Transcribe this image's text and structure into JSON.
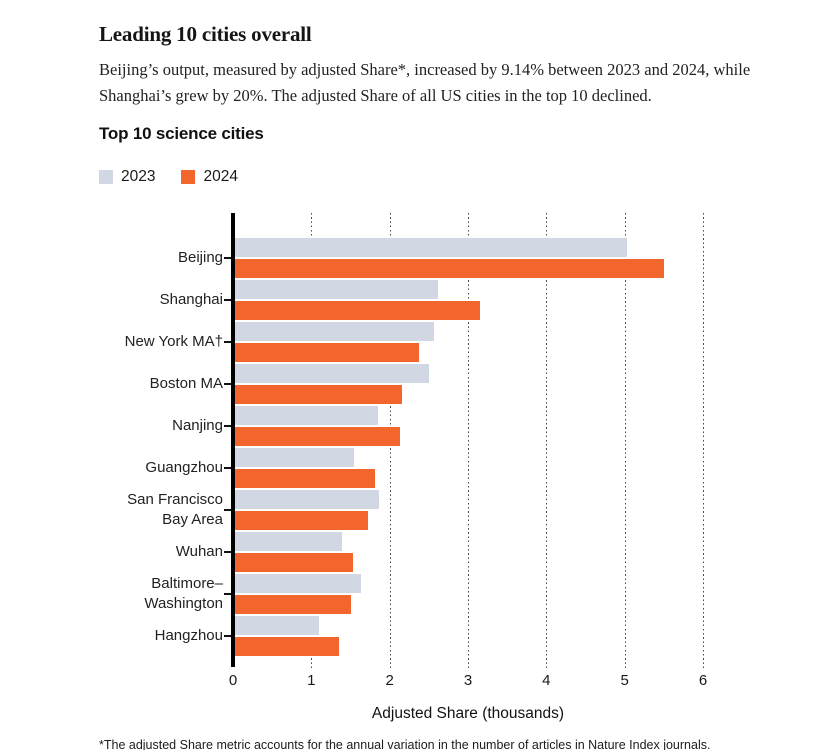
{
  "header": {
    "title": "Leading 10 cities overall",
    "subtitle": "Beijing’s output, measured by adjusted Share*, increased by 9.14% between 2023 and 2024, while Shanghai’s grew by 20%. The adjusted Share of all US cities in the top 10 declined.",
    "footnote": "*The adjusted Share metric accounts for the annual variation in the number of articles in Nature Index journals."
  },
  "chart_data": {
    "type": "bar",
    "orientation": "horizontal",
    "title": "Top 10 science cities",
    "xlabel": "Adjusted Share (thousands)",
    "xlim": [
      0,
      6
    ],
    "xticks": [
      0,
      1,
      2,
      3,
      4,
      5,
      6
    ],
    "grid": "vertical dotted gridlines",
    "legend_position": "top-left",
    "categories": [
      "Beijing",
      "Shanghai",
      "New York MA†",
      "Boston MA",
      "Nanjing",
      "Guangzhou",
      "San Francisco Bay Area",
      "Wuhan",
      "Baltimore–Washington",
      "Hangzhou"
    ],
    "category_labels": [
      "Beijing",
      "Shanghai",
      "New York MA†",
      "Boston MA",
      "Nanjing",
      "Guangzhou",
      "San Francisco\nBay Area",
      "Wuhan",
      "Baltimore–\nWashington",
      "Hangzhou"
    ],
    "series": [
      {
        "name": "2023",
        "color": "#d1d8e3",
        "values": [
          5.03,
          2.62,
          2.56,
          2.5,
          1.85,
          1.55,
          1.87,
          1.39,
          1.64,
          1.1
        ]
      },
      {
        "name": "2024",
        "color": "#f2662e",
        "values": [
          5.5,
          3.15,
          2.38,
          2.16,
          2.13,
          1.81,
          1.72,
          1.53,
          1.5,
          1.35
        ]
      }
    ],
    "axis_color": "#000000",
    "gridline_color": "#4a4a4a"
  }
}
